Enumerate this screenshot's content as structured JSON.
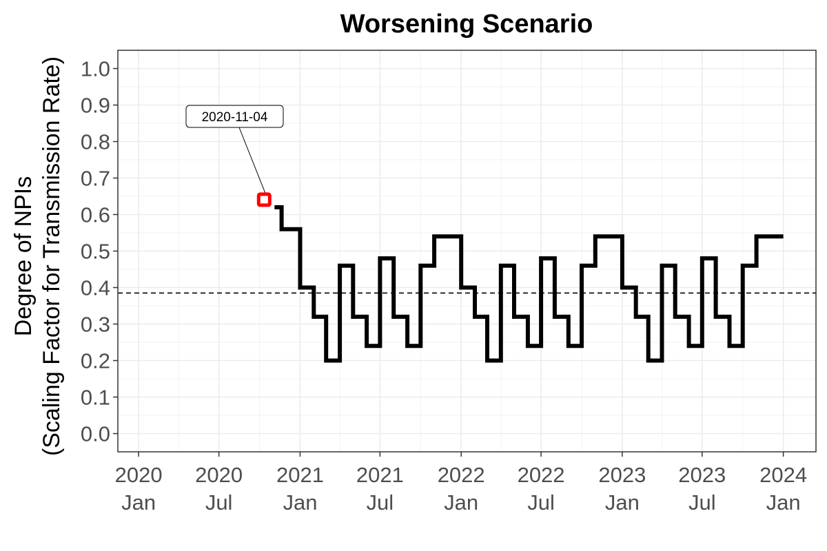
{
  "chart_data": {
    "type": "line",
    "title": "Worsening Scenario",
    "xlabel": "",
    "ylabel_line1": "Degree of NPIs",
    "ylabel_line2": "(Scaling Factor for Transmission Rate)",
    "ylim": [
      -0.05,
      1.05
    ],
    "xlim": [
      "2019-11-15",
      "2024-03-15"
    ],
    "yticks": [
      "0.0",
      "0.1",
      "0.2",
      "0.3",
      "0.4",
      "0.5",
      "0.6",
      "0.7",
      "0.8",
      "0.9",
      "1.0"
    ],
    "xticks": [
      {
        "date": "2020-01-01",
        "year": "2020",
        "month": "Jan"
      },
      {
        "date": "2020-07-01",
        "year": "2020",
        "month": "Jul"
      },
      {
        "date": "2021-01-01",
        "year": "2021",
        "month": "Jan"
      },
      {
        "date": "2021-07-01",
        "year": "2021",
        "month": "Jul"
      },
      {
        "date": "2022-01-01",
        "year": "2022",
        "month": "Jan"
      },
      {
        "date": "2022-07-01",
        "year": "2022",
        "month": "Jul"
      },
      {
        "date": "2023-01-01",
        "year": "2023",
        "month": "Jan"
      },
      {
        "date": "2023-07-01",
        "year": "2023",
        "month": "Jul"
      },
      {
        "date": "2024-01-01",
        "year": "2024",
        "month": "Jan"
      }
    ],
    "grid": true,
    "reference_line": {
      "y": 0.385,
      "style": "dashed"
    },
    "series": [
      {
        "step_points": [
          [
            "2020-11-04",
            0.62
          ],
          [
            "2020-11-20",
            0.56
          ],
          [
            "2021-01-01",
            0.4
          ],
          [
            "2021-02-01",
            0.32
          ],
          [
            "2021-03-01",
            0.2
          ],
          [
            "2021-04-01",
            0.46
          ],
          [
            "2021-05-01",
            0.32
          ],
          [
            "2021-06-01",
            0.24
          ],
          [
            "2021-07-01",
            0.48
          ],
          [
            "2021-08-01",
            0.32
          ],
          [
            "2021-09-01",
            0.24
          ],
          [
            "2021-10-01",
            0.46
          ],
          [
            "2021-11-01",
            0.54
          ],
          [
            "2022-01-01",
            0.4
          ],
          [
            "2022-02-01",
            0.32
          ],
          [
            "2022-03-01",
            0.2
          ],
          [
            "2022-04-01",
            0.46
          ],
          [
            "2022-05-01",
            0.32
          ],
          [
            "2022-06-01",
            0.24
          ],
          [
            "2022-07-01",
            0.48
          ],
          [
            "2022-08-01",
            0.32
          ],
          [
            "2022-09-01",
            0.24
          ],
          [
            "2022-10-01",
            0.46
          ],
          [
            "2022-11-01",
            0.54
          ],
          [
            "2023-01-01",
            0.4
          ],
          [
            "2023-02-01",
            0.32
          ],
          [
            "2023-03-01",
            0.2
          ],
          [
            "2023-04-01",
            0.46
          ],
          [
            "2023-05-01",
            0.32
          ],
          [
            "2023-06-01",
            0.24
          ],
          [
            "2023-07-01",
            0.48
          ],
          [
            "2023-08-01",
            0.32
          ],
          [
            "2023-09-01",
            0.24
          ],
          [
            "2023-10-01",
            0.46
          ],
          [
            "2023-11-01",
            0.54
          ]
        ],
        "end_date": "2024-01-01",
        "color": "#000000"
      }
    ],
    "annotation": {
      "text": "2020-11-04",
      "date": "2020-11-04",
      "value": 0.62,
      "marker_color": "#ff0000",
      "marker_shape": "square"
    }
  }
}
